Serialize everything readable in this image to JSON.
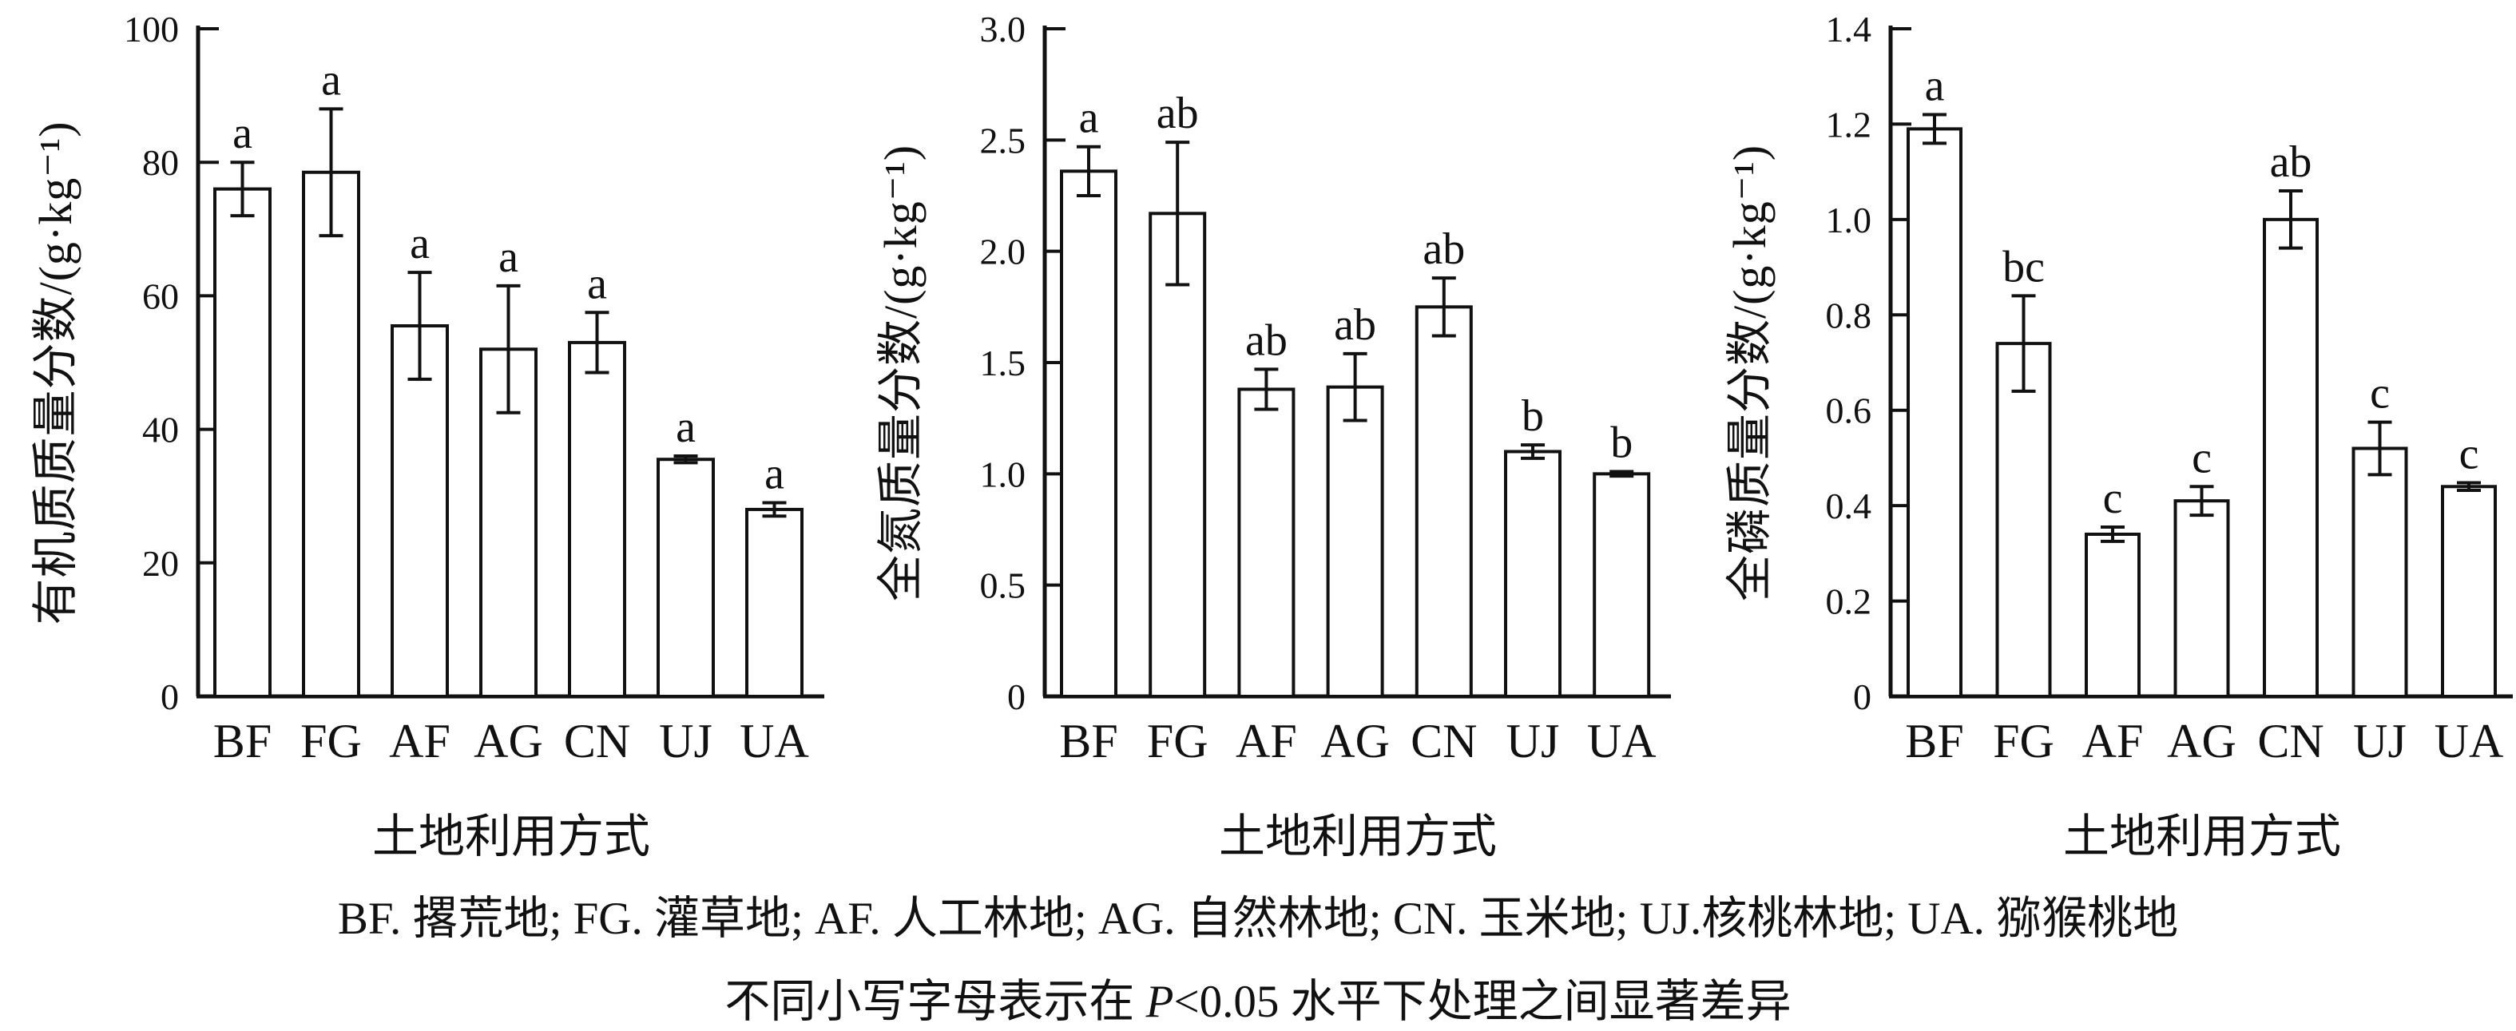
{
  "figure": {
    "x_axis_title": "土地利用方式",
    "caption_line1": "BF. 撂荒地; FG. 灌草地; AF. 人工林地; AG. 自然林地; CN. 玉米地; UJ.核桃林地; UA. 猕猴桃地",
    "caption_line2": {
      "prefix": "不同小写字母表示在 ",
      "italic": "P",
      "suffix": "<0.05 水平下处理之间显著差异"
    },
    "colors": {
      "axis": "#111111",
      "bar_fill": "#ffffff",
      "bar_stroke": "#111111",
      "text": "#111111",
      "background": "#ffffff"
    }
  },
  "chart_data": [
    {
      "type": "bar",
      "title": "",
      "ylabel": "有机质质量分数/(g·kg⁻¹)",
      "xlabel": "土地利用方式",
      "categories": [
        "BF",
        "FG",
        "AF",
        "AG",
        "CN",
        "UJ",
        "UA"
      ],
      "values": [
        76,
        78.5,
        55.5,
        52,
        53,
        35.5,
        28
      ],
      "errors": [
        4,
        9.5,
        8,
        9.5,
        4.5,
        0.5,
        1
      ],
      "sig_letters": [
        "a",
        "a",
        "a",
        "a",
        "a",
        "a",
        "a"
      ],
      "ylim": [
        0,
        100
      ],
      "ytick_step": 20,
      "ytick_labels": [
        "0",
        "20",
        "40",
        "60",
        "80",
        "100"
      ],
      "grid": false,
      "legend": "none"
    },
    {
      "type": "bar",
      "title": "",
      "ylabel": "全氮质量分数/(g·kg⁻¹)",
      "xlabel": "土地利用方式",
      "categories": [
        "BF",
        "FG",
        "AF",
        "AG",
        "CN",
        "UJ",
        "UA"
      ],
      "values": [
        2.36,
        2.17,
        1.38,
        1.39,
        1.75,
        1.1,
        1.0
      ],
      "errors": [
        0.11,
        0.32,
        0.09,
        0.15,
        0.13,
        0.03,
        0.01
      ],
      "sig_letters": [
        "a",
        "ab",
        "ab",
        "ab",
        "ab",
        "b",
        "b"
      ],
      "ylim": [
        0,
        3.0
      ],
      "ytick_step": 0.5,
      "ytick_labels": [
        "0",
        "0.5",
        "1.0",
        "1.5",
        "2.0",
        "2.5",
        "3.0"
      ],
      "grid": false,
      "legend": "none"
    },
    {
      "type": "bar",
      "title": "",
      "ylabel": "全磷质量分数/(g·kg⁻¹)",
      "xlabel": "土地利用方式",
      "categories": [
        "BF",
        "FG",
        "AF",
        "AG",
        "CN",
        "UJ",
        "UA"
      ],
      "values": [
        1.19,
        0.74,
        0.34,
        0.41,
        1.0,
        0.52,
        0.44
      ],
      "errors": [
        0.03,
        0.1,
        0.015,
        0.03,
        0.06,
        0.055,
        0.008
      ],
      "sig_letters": [
        "a",
        "bc",
        "c",
        "c",
        "ab",
        "c",
        "c"
      ],
      "ylim": [
        0,
        1.4
      ],
      "ytick_step": 0.2,
      "ytick_labels": [
        "0",
        "0.2",
        "0.4",
        "0.6",
        "0.8",
        "1.0",
        "1.2",
        "1.4"
      ],
      "grid": false,
      "legend": "none"
    }
  ]
}
